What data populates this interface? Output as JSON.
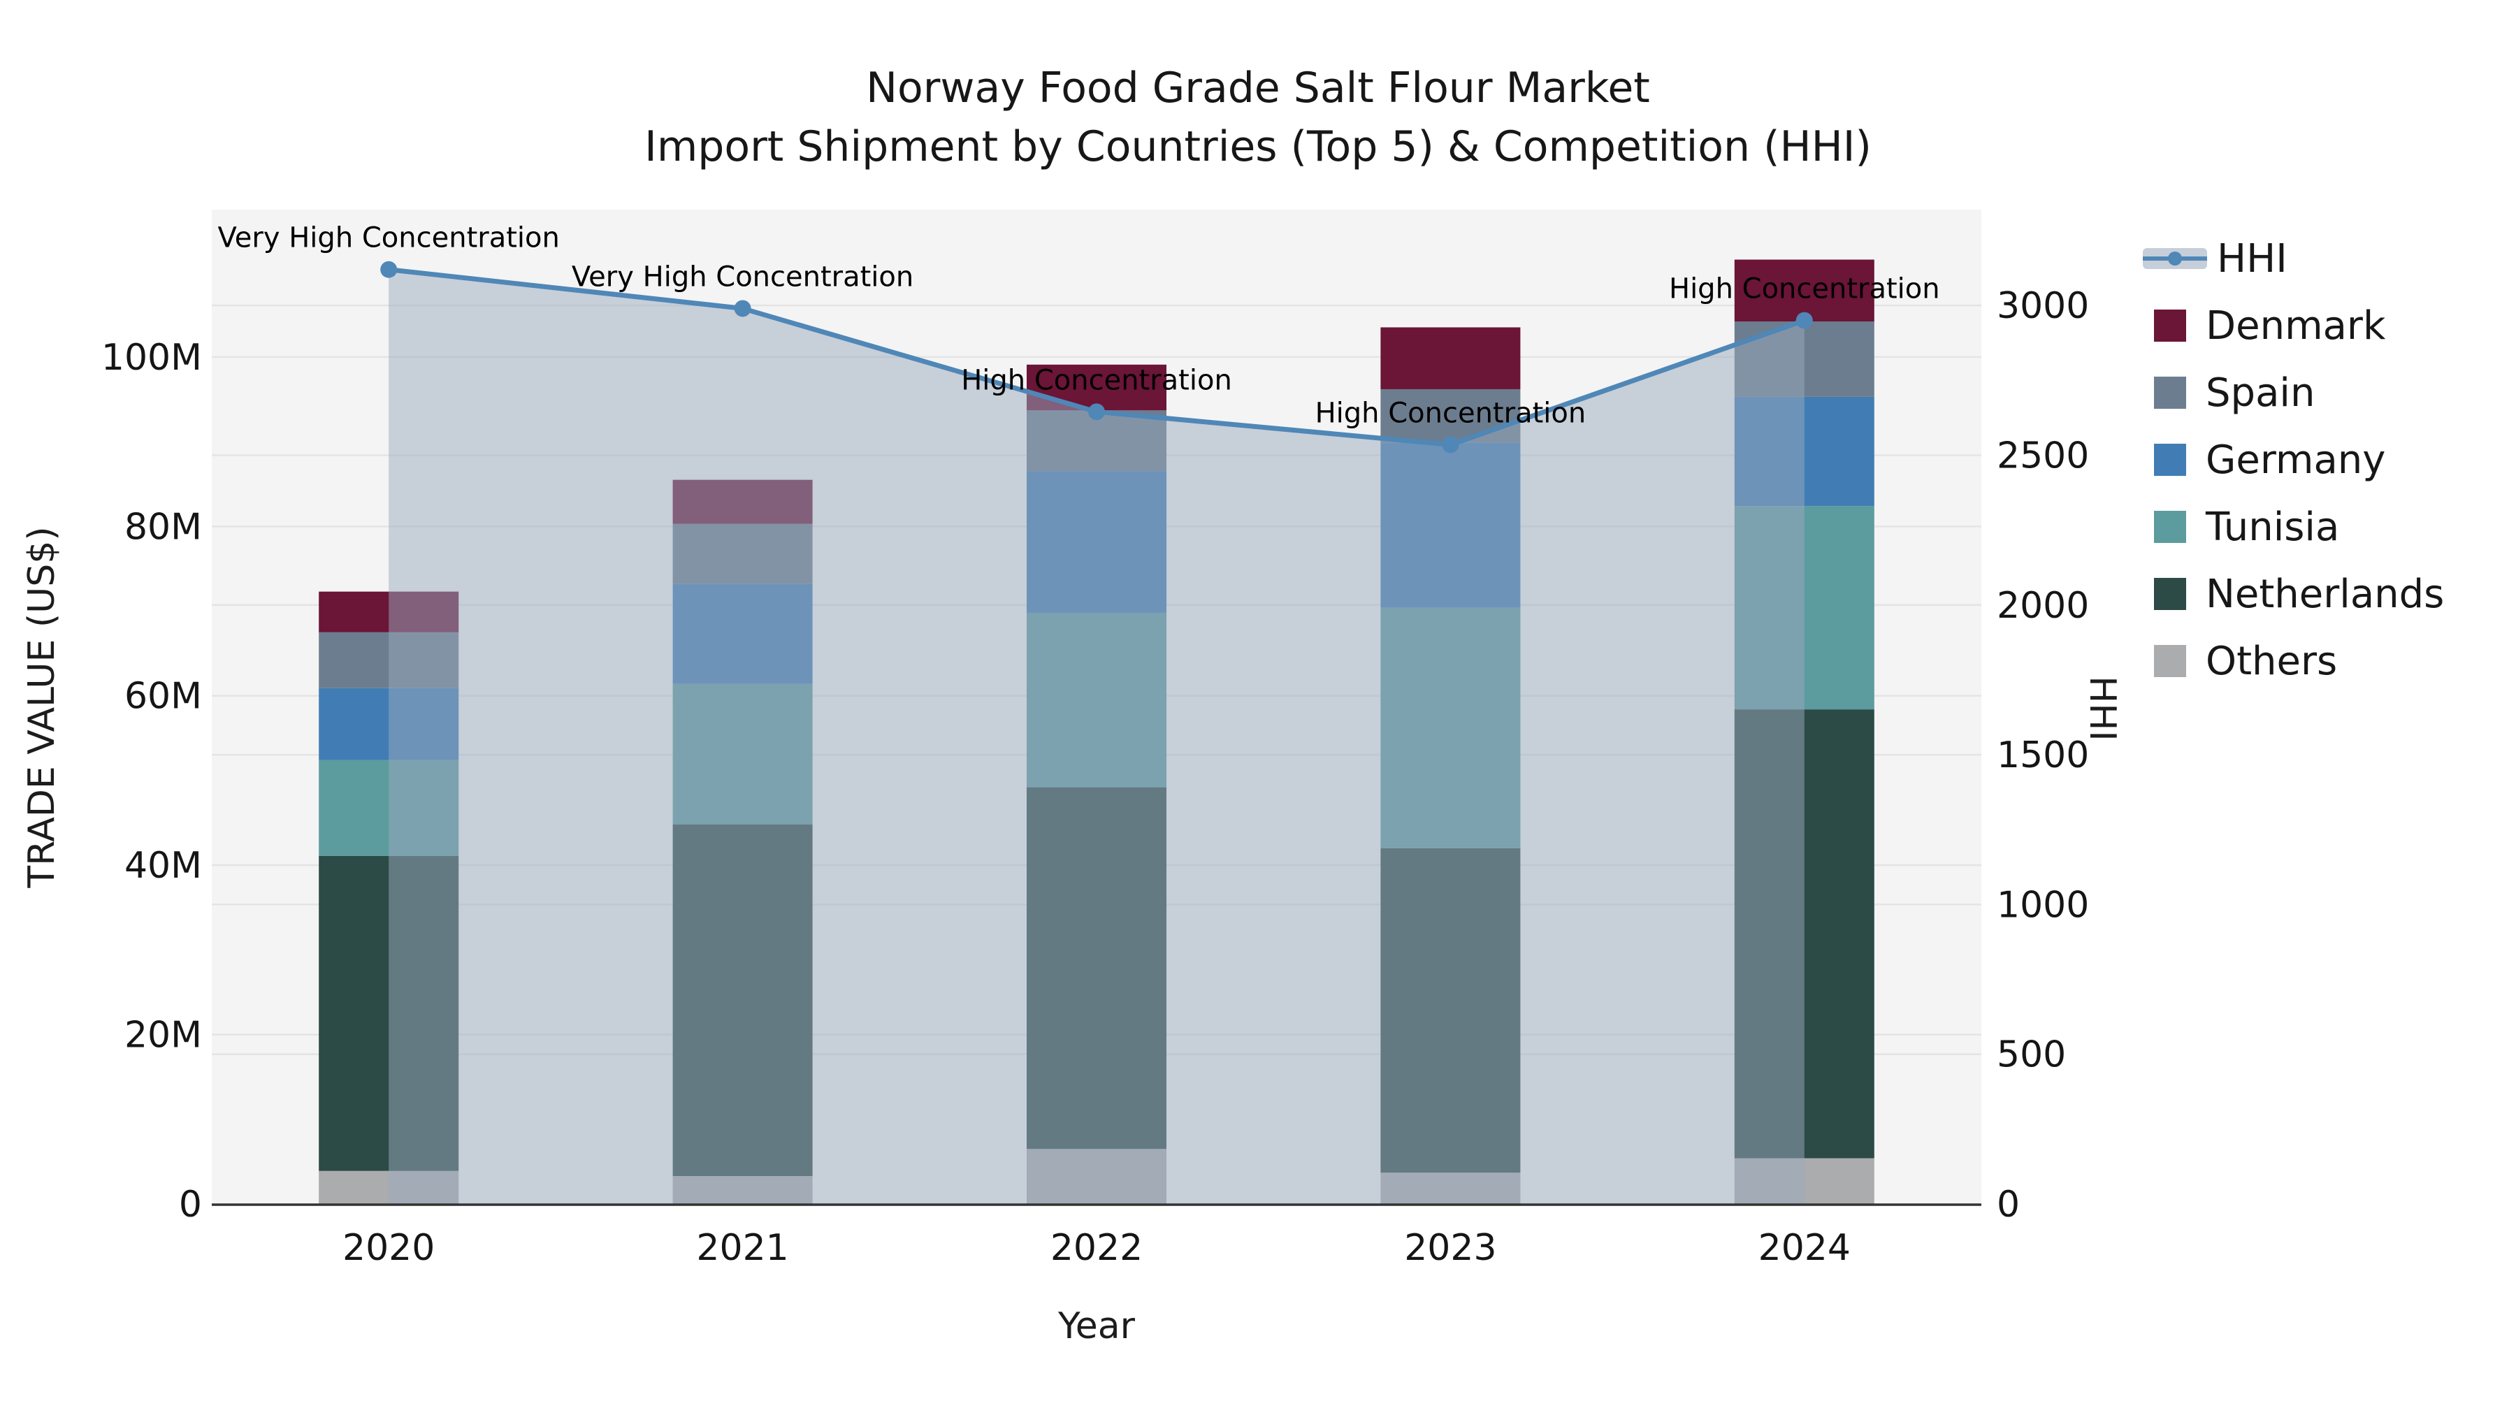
{
  "title": {
    "line1": "Norway Food Grade Salt Flour Market",
    "line2": "Import Shipment by Countries (Top 5) & Competition (HHI)"
  },
  "axes": {
    "x_label": "Year",
    "y_left_label": "TRADE VALUE (US$)",
    "y_right_label": "HHI",
    "y_left_ticks": [
      {
        "value": 0,
        "label": "0"
      },
      {
        "value": 20,
        "label": "20M"
      },
      {
        "value": 40,
        "label": "40M"
      },
      {
        "value": 60,
        "label": "60M"
      },
      {
        "value": 80,
        "label": "80M"
      },
      {
        "value": 100,
        "label": "100M"
      }
    ],
    "y_right_ticks": [
      {
        "value": 0,
        "label": "0"
      },
      {
        "value": 500,
        "label": "500"
      },
      {
        "value": 1000,
        "label": "1000"
      },
      {
        "value": 1500,
        "label": "1500"
      },
      {
        "value": 2000,
        "label": "2000"
      },
      {
        "value": 2500,
        "label": "2500"
      },
      {
        "value": 3000,
        "label": "3000"
      }
    ]
  },
  "legend": [
    {
      "label": "HHI",
      "type": "line-band"
    },
    {
      "label": "Denmark",
      "type": "patch"
    },
    {
      "label": "Spain",
      "type": "patch"
    },
    {
      "label": "Germany",
      "type": "patch"
    },
    {
      "label": "Tunisia",
      "type": "patch"
    },
    {
      "label": "Netherlands",
      "type": "patch"
    },
    {
      "label": "Others",
      "type": "patch"
    }
  ],
  "chart_data": {
    "type": "stacked-bar-with-line",
    "categories": [
      "2020",
      "2021",
      "2022",
      "2023",
      "2024"
    ],
    "value_unit": "M US$",
    "series": [
      {
        "name": "Denmark",
        "color": "#6b1537",
        "values": [
          4.8,
          5.2,
          5.4,
          7.3,
          7.3
        ]
      },
      {
        "name": "Spain",
        "color": "#6c7d8f",
        "values": [
          6.6,
          7.1,
          7.2,
          6.3,
          8.9
        ]
      },
      {
        "name": "Germany",
        "color": "#417db4",
        "values": [
          8.5,
          11.8,
          16.7,
          19.5,
          12.9
        ]
      },
      {
        "name": "Tunisia",
        "color": "#5c9b9e",
        "values": [
          11.3,
          16.6,
          20.6,
          28.4,
          24.0
        ]
      },
      {
        "name": "Netherlands",
        "color": "#2c4a46",
        "values": [
          37.2,
          41.5,
          42.7,
          38.3,
          53.0
        ]
      },
      {
        "name": "Others",
        "color": "#abacae",
        "values": [
          3.9,
          3.3,
          6.5,
          3.7,
          5.4
        ]
      }
    ],
    "bar_totals": [
      72.3,
      85.5,
      99.1,
      103.5,
      111.5
    ],
    "line_series": {
      "name": "HHI",
      "axis": "right",
      "color": "#4f87b7",
      "area_fill": "rgba(154,170,190,0.5)",
      "legend_band_color": "#c6ced9",
      "values": [
        3120,
        2990,
        2645,
        2535,
        2950
      ]
    },
    "annotations": [
      {
        "index": 0,
        "text": "Very High Concentration"
      },
      {
        "index": 1,
        "text": "Very High Concentration"
      },
      {
        "index": 2,
        "text": "High Concentration"
      },
      {
        "index": 3,
        "text": "High Concentration"
      },
      {
        "index": 4,
        "text": "High Concentration"
      }
    ],
    "ylim_left": [
      0,
      117.4
    ],
    "ylim_right": [
      0,
      3320
    ],
    "grid": true,
    "legend_position": "right"
  }
}
